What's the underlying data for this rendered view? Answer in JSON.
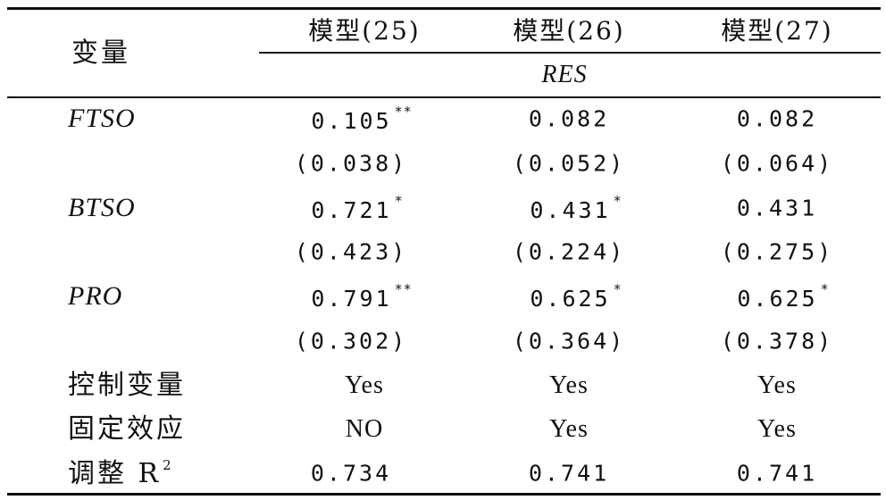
{
  "header": {
    "variable": "变量",
    "models": [
      "模型(25)",
      "模型(26)",
      "模型(27)"
    ],
    "dependent": "RES"
  },
  "rows": [
    {
      "label": "FTSO",
      "coefs": [
        "0.105",
        "0.082",
        "0.082"
      ],
      "stars": [
        "**",
        "",
        ""
      ],
      "ses": [
        "(0.038)",
        "(0.052)",
        "(0.064)"
      ]
    },
    {
      "label": "BTSO",
      "coefs": [
        "0.721",
        "0.431",
        "0.431"
      ],
      "stars": [
        "*",
        "*",
        ""
      ],
      "ses": [
        "(0.423)",
        "(0.224)",
        "(0.275)"
      ]
    },
    {
      "label": "PRO",
      "coefs": [
        "0.791",
        "0.625",
        "0.625"
      ],
      "stars": [
        "**",
        "*",
        "*"
      ],
      "ses": [
        "(0.302)",
        "(0.364)",
        "(0.378)"
      ]
    }
  ],
  "footer": [
    {
      "label": "控制变量",
      "values": [
        "Yes",
        "Yes",
        "Yes"
      ]
    },
    {
      "label": "固定效应",
      "values": [
        "NO",
        "Yes",
        "Yes"
      ]
    },
    {
      "label": "调整 R",
      "label_sup": "2",
      "values": [
        "0.734",
        "0.741",
        "0.741"
      ]
    }
  ]
}
